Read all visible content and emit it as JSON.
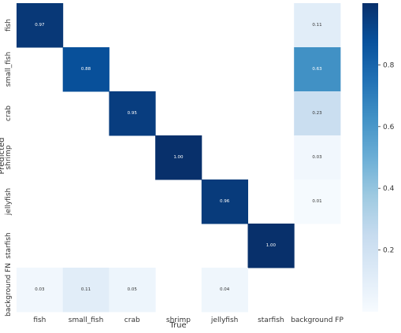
{
  "chart_data": {
    "type": "heatmap",
    "xlabel": "True",
    "ylabel": "Predicted",
    "x_categories": [
      "fish",
      "small_fish",
      "crab",
      "shrimp",
      "jellyfish",
      "starfish",
      "background FP"
    ],
    "y_categories": [
      "fish",
      "small_fish",
      "crab",
      "shrimp",
      "jellyfish",
      "starfish",
      "background FN"
    ],
    "values": [
      [
        0.97,
        null,
        null,
        null,
        null,
        null,
        0.11
      ],
      [
        null,
        0.88,
        null,
        null,
        null,
        null,
        0.63
      ],
      [
        null,
        null,
        0.95,
        null,
        null,
        null,
        0.23
      ],
      [
        null,
        null,
        null,
        1.0,
        null,
        null,
        0.03
      ],
      [
        null,
        null,
        null,
        null,
        0.96,
        null,
        0.01
      ],
      [
        null,
        null,
        null,
        null,
        null,
        1.0,
        null
      ],
      [
        0.03,
        0.11,
        0.05,
        null,
        0.04,
        null,
        null
      ]
    ],
    "value_format": "0.00",
    "colormap": "Blues",
    "vmin": 0,
    "vmax": 1,
    "colorbar_ticks": [
      0.2,
      0.4,
      0.6,
      0.8
    ],
    "colorbar_tick_labels": [
      "0.2",
      "0.4",
      "0.6",
      "0.8"
    ],
    "annotation_colors": {
      "dark_cell_text": "#ffffff",
      "light_cell_text": "#333333"
    }
  }
}
